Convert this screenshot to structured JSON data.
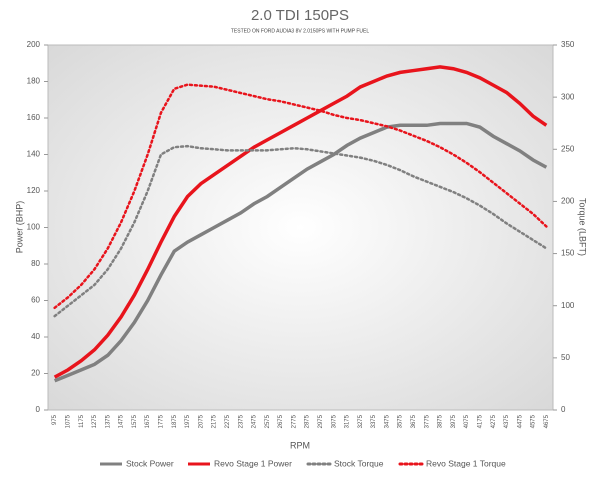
{
  "chart_data": {
    "type": "line",
    "title": "2.0 TDI 150PS",
    "subtitle": "TESTED ON FORD AUDIA3 8V 2.0150PS WITH PUMP FUEL",
    "x_label": "RPM",
    "y_label": "Power (BHP)",
    "y2_label": "Torque (LBFT)",
    "categories": [
      "975",
      "1075",
      "1175",
      "1275",
      "1375",
      "1475",
      "1575",
      "1675",
      "1775",
      "1875",
      "1975",
      "2075",
      "2175",
      "2275",
      "2375",
      "2475",
      "2575",
      "2675",
      "2775",
      "2875",
      "2975",
      "3075",
      "3175",
      "3275",
      "3375",
      "3475",
      "3575",
      "3675",
      "3775",
      "3875",
      "3975",
      "4075",
      "4175",
      "4275",
      "4375",
      "4475",
      "4575",
      "4675"
    ],
    "series": [
      {
        "name": "Stock Power",
        "color": "#808080",
        "line_style": "solid",
        "axis": "y",
        "values": [
          16,
          19,
          22,
          25,
          30,
          38,
          48,
          60,
          74,
          87,
          92,
          96,
          100,
          104,
          108,
          113,
          117,
          122,
          127,
          132,
          136,
          140,
          145,
          149,
          152,
          155,
          156,
          156,
          156,
          157,
          157,
          157,
          155,
          150,
          146,
          142,
          137,
          133
        ]
      },
      {
        "name": "Revo Stage 1 Power",
        "color": "#e8141c",
        "line_style": "solid",
        "axis": "y",
        "values": [
          18,
          22,
          27,
          33,
          41,
          51,
          63,
          77,
          92,
          106,
          117,
          124,
          129,
          134,
          139,
          144,
          148,
          152,
          156,
          160,
          164,
          168,
          172,
          177,
          180,
          183,
          185,
          186,
          187,
          188,
          187,
          185,
          182,
          178,
          174,
          168,
          161,
          156
        ]
      },
      {
        "name": "Stock Torque",
        "color": "#808080",
        "line_style": "dotted",
        "axis": "y2",
        "values": [
          90,
          100,
          110,
          120,
          135,
          155,
          180,
          210,
          245,
          252,
          253,
          251,
          250,
          249,
          249,
          249,
          249,
          250,
          251,
          250,
          248,
          246,
          244,
          242,
          239,
          235,
          230,
          224,
          219,
          214,
          209,
          203,
          196,
          188,
          179,
          171,
          163,
          155
        ]
      },
      {
        "name": "Revo Stage 1 Torque",
        "color": "#e8141c",
        "line_style": "dotted",
        "axis": "y2",
        "values": [
          98,
          108,
          120,
          135,
          155,
          180,
          210,
          245,
          285,
          308,
          312,
          311,
          310,
          307,
          304,
          301,
          298,
          296,
          293,
          290,
          287,
          283,
          280,
          278,
          275,
          272,
          268,
          263,
          258,
          252,
          245,
          237,
          228,
          218,
          208,
          198,
          188,
          176
        ]
      }
    ],
    "ylim": [
      0,
      200
    ],
    "yticks": [
      0,
      20,
      40,
      60,
      80,
      100,
      120,
      140,
      160,
      180,
      200
    ],
    "y2lim": [
      0,
      350
    ],
    "y2ticks": [
      0,
      50,
      100,
      150,
      200,
      250,
      300,
      350
    ],
    "legend": "bottom"
  }
}
